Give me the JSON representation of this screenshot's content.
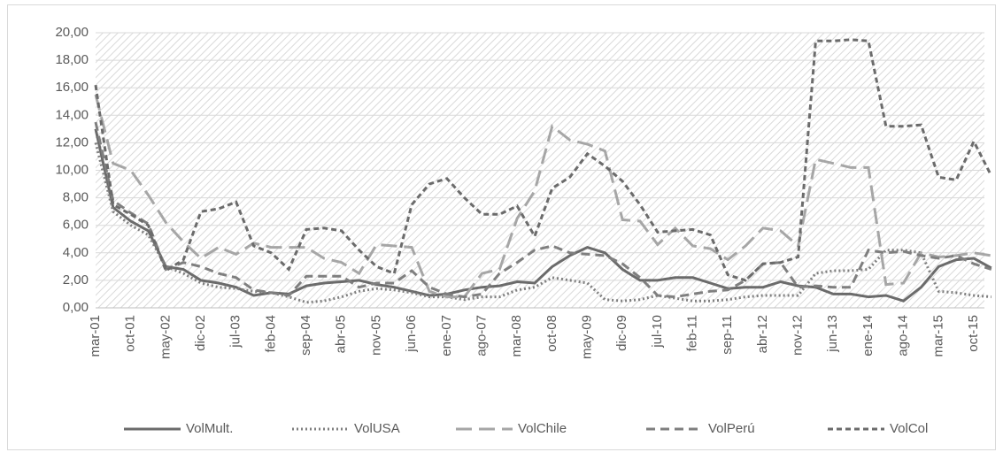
{
  "chart_data": {
    "type": "line",
    "categories": [
      "mar-01",
      null,
      "oct-01",
      null,
      "may-02",
      null,
      "dic-02",
      null,
      "jul-03",
      null,
      "feb-04",
      null,
      "sep-04",
      null,
      "abr-05",
      null,
      "nov-05",
      null,
      "jun-06",
      null,
      "ene-07",
      null,
      "ago-07",
      null,
      "mar-08",
      null,
      "oct-08",
      null,
      "may-09",
      null,
      "dic-09",
      null,
      "jul-10",
      null,
      "feb-11",
      null,
      "sep-11",
      null,
      "abr-12",
      null,
      "nov-12",
      null,
      "jun-13",
      null,
      "ene-14",
      null,
      "ago-14",
      null,
      "mar-15",
      null,
      "oct-15",
      null
    ],
    "series": [
      {
        "name": "VolMult.",
        "color": "#6b6b6b",
        "style": "solid",
        "values": [
          13,
          7.3,
          6.3,
          5.6,
          3.0,
          2.8,
          2.0,
          1.8,
          1.5,
          0.9,
          1.1,
          1.0,
          1.6,
          1.8,
          1.9,
          2.0,
          1.7,
          1.5,
          1.2,
          0.9,
          1.0,
          1.3,
          1.5,
          1.6,
          1.9,
          1.8,
          3.0,
          3.8,
          4.4,
          4.0,
          2.8,
          2.0,
          2.0,
          2.2,
          2.2,
          1.8,
          1.4,
          1.5,
          1.5,
          1.9,
          1.6,
          1.5,
          1.0,
          1.0,
          0.8,
          0.9,
          0.5,
          1.5,
          3.0,
          3.5,
          3.6,
          2.9
        ]
      },
      {
        "name": "VolUSA",
        "color": "#7f7f7f",
        "style": "dotted",
        "values": [
          12,
          7.0,
          6.0,
          5.3,
          3.0,
          2.5,
          1.8,
          1.5,
          1.4,
          1.2,
          1.1,
          0.8,
          0.4,
          0.5,
          0.8,
          1.2,
          1.4,
          1.3,
          1.1,
          0.8,
          0.8,
          0.6,
          0.8,
          0.8,
          1.3,
          1.5,
          2.2,
          2.0,
          1.8,
          0.6,
          0.5,
          0.6,
          0.9,
          0.7,
          0.5,
          0.5,
          0.6,
          0.8,
          0.9,
          0.9,
          0.9,
          2.5,
          2.7,
          2.7,
          2.8,
          4.2,
          4.2,
          4.0,
          1.2,
          1.1,
          0.9,
          0.8
        ]
      },
      {
        "name": "VolChile",
        "color": "#a6a6a6",
        "style": "long-dash",
        "values": [
          15.5,
          10.5,
          10.0,
          8.2,
          6.2,
          4.8,
          3.6,
          4.4,
          3.9,
          4.7,
          4.4,
          4.4,
          4.4,
          3.6,
          3.3,
          2.5,
          4.6,
          4.5,
          4.4,
          1.2,
          0.8,
          0.8,
          2.5,
          2.8,
          6.5,
          8.5,
          13.2,
          12.2,
          11.9,
          11.4,
          6.4,
          6.3,
          4.6,
          5.8,
          4.5,
          4.3,
          3.5,
          4.5,
          5.8,
          5.6,
          4.5,
          10.8,
          10.5,
          10.2,
          10.2,
          1.7,
          1.8,
          4.0,
          3.7,
          3.8,
          4.0,
          3.8
        ]
      },
      {
        "name": "VolPerú",
        "color": "#7f7f7f",
        "style": "dash",
        "values": [
          13.5,
          7.8,
          6.9,
          6.1,
          2.8,
          3.3,
          3.0,
          2.5,
          2.2,
          1.3,
          1.1,
          0.9,
          2.3,
          2.3,
          2.3,
          1.5,
          1.8,
          1.8,
          2.7,
          1.5,
          1.0,
          0.8,
          1.0,
          2.5,
          3.3,
          4.2,
          4.5,
          4.0,
          3.9,
          3.8,
          3.2,
          2.2,
          0.9,
          0.8,
          1.0,
          1.2,
          1.3,
          2.0,
          3.2,
          3.3,
          1.5,
          1.6,
          1.5,
          1.5,
          4.2,
          4.0,
          4.1,
          3.8,
          3.6,
          3.8,
          3.2,
          2.8
        ]
      },
      {
        "name": "VolCol",
        "color": "#6b6b6b",
        "style": "short-dash",
        "values": [
          16.2,
          7.5,
          6.8,
          6.0,
          2.7,
          3.5,
          7.0,
          7.2,
          7.7,
          4.5,
          4.0,
          2.8,
          5.7,
          5.8,
          5.6,
          4.2,
          3.0,
          2.5,
          7.5,
          9.0,
          9.4,
          8.0,
          6.8,
          6.8,
          7.4,
          5.2,
          8.7,
          9.5,
          11.2,
          10.3,
          9.2,
          7.5,
          5.5,
          5.6,
          5.7,
          5.3,
          2.4,
          2.0,
          3.2,
          3.3,
          3.7,
          19.4,
          19.4,
          19.5,
          19.4,
          13.2,
          13.2,
          13.3,
          9.5,
          9.3,
          12.1,
          9.6
        ]
      }
    ],
    "ylim": [
      0,
      20
    ],
    "yticks": [
      {
        "value": 0,
        "label": "0,00"
      },
      {
        "value": 2,
        "label": "2,00"
      },
      {
        "value": 4,
        "label": "4,00"
      },
      {
        "value": 6,
        "label": "6,00"
      },
      {
        "value": 8,
        "label": "8,00"
      },
      {
        "value": 10,
        "label": "10,00"
      },
      {
        "value": 12,
        "label": "12,00"
      },
      {
        "value": 14,
        "label": "14,00"
      },
      {
        "value": 16,
        "label": "16,00"
      },
      {
        "value": 18,
        "label": "18,00"
      },
      {
        "value": 20,
        "label": "20,00"
      }
    ],
    "grid": true,
    "legend": "bottom"
  }
}
